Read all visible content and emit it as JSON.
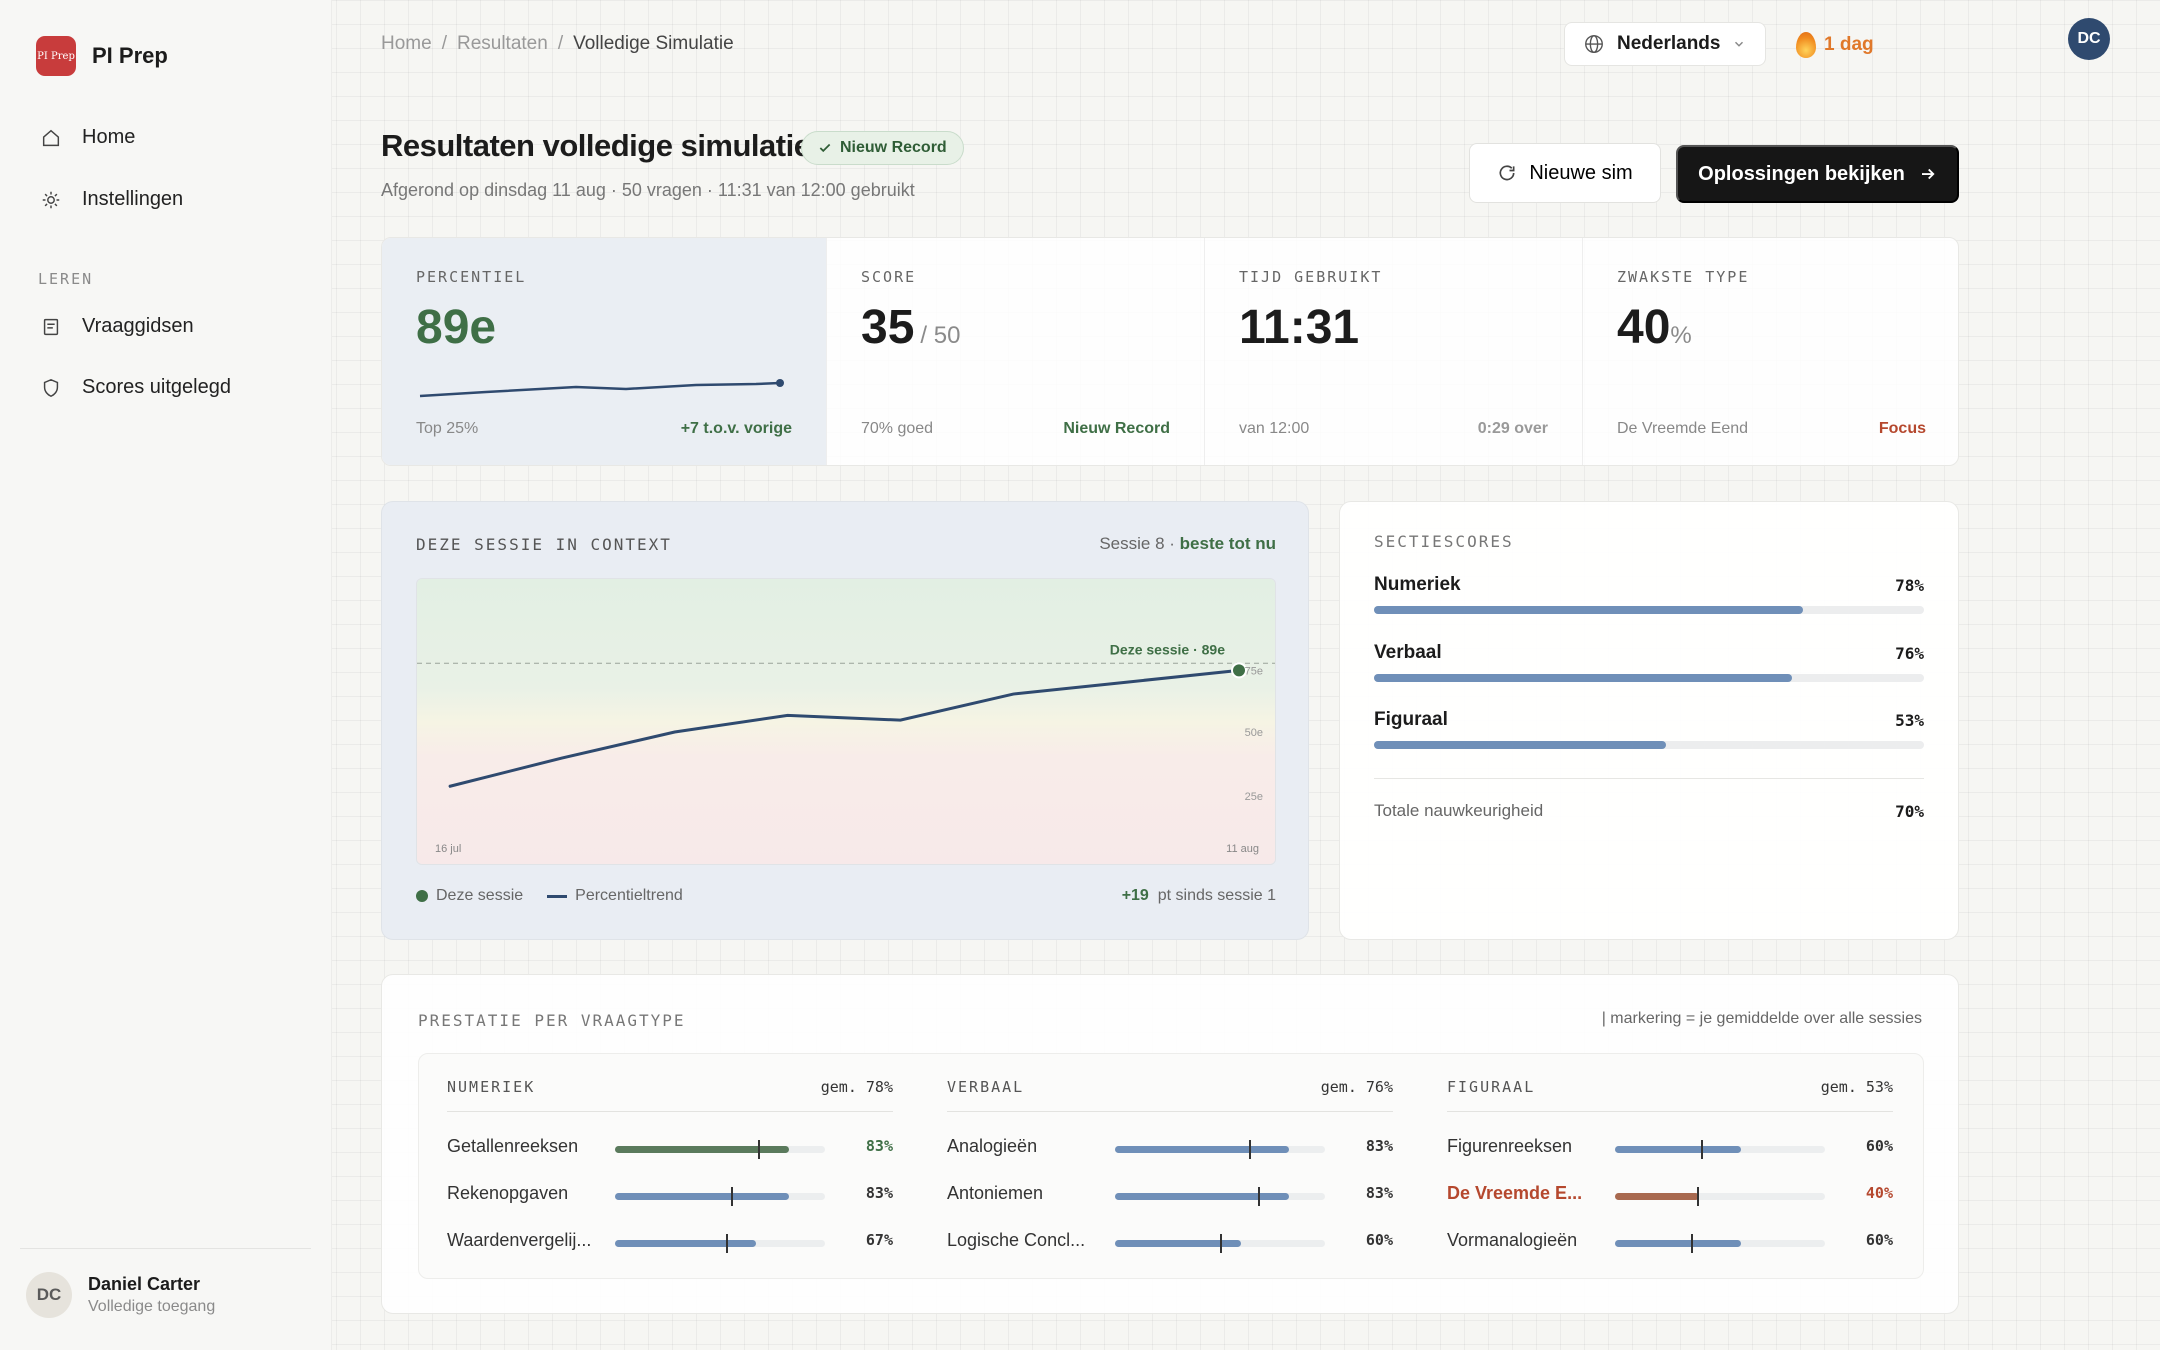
{
  "app": {
    "name": "PI Prep",
    "logo_text": "PI Prep"
  },
  "sidebar": {
    "nav": [
      {
        "label": "Home",
        "icon": "home-icon"
      },
      {
        "label": "Instellingen",
        "icon": "gear-icon"
      }
    ],
    "section_label": "LEREN",
    "learn": [
      {
        "label": "Vraaggidsen",
        "icon": "guide-icon"
      },
      {
        "label": "Scores uitgelegd",
        "icon": "shield-icon"
      }
    ],
    "user": {
      "initials": "DC",
      "name": "Daniel Carter",
      "subtitle": "Volledige toegang"
    }
  },
  "topbar": {
    "breadcrumb": [
      "Home",
      "Resultaten",
      "Volledige Simulatie"
    ],
    "language": "Nederlands",
    "streak": "1 dag",
    "avatar_initials": "DC"
  },
  "header": {
    "title": "Resultaten volledige simulatie",
    "badge": "Nieuw Record",
    "subtitle": "Afgerond op dinsdag 11 aug · 50 vragen · 11:31 van 12:00 gebruikt",
    "btn_secondary": "Nieuwe sim",
    "btn_primary": "Oplossingen bekijken"
  },
  "stats": [
    {
      "label": "PERCENTIEL",
      "value": "89e",
      "suffix": "",
      "foot_left": "Top 25%",
      "foot_right": "+7 t.o.v. vorige",
      "foot_right_color": "#3f6f46"
    },
    {
      "label": "SCORE",
      "value": "35",
      "suffix": "/ 50",
      "foot_left": "70% goed",
      "foot_right": "Nieuw Record",
      "foot_right_color": "#3f6f46"
    },
    {
      "label": "TIJD GEBRUIKT",
      "value": "11:31",
      "suffix": "",
      "foot_left": "van 12:00",
      "foot_right": "0:29 over",
      "foot_right_color": "#999999"
    },
    {
      "label": "ZWAKSTE TYPE",
      "value": "40",
      "suffix": "%",
      "foot_left": "De Vreemde Eend",
      "foot_right": "Focus",
      "foot_right_color": "#b5482e"
    }
  ],
  "context": {
    "label": "DEZE SESSIE IN CONTEXT",
    "session_text": "Sessie 8 · ",
    "session_best": "beste tot nu",
    "legend_session": "Deze sessie",
    "legend_trend": "Percentieltrend",
    "delta_value": "+19",
    "delta_text": "pt sinds sessie 1"
  },
  "chart_data": {
    "type": "line",
    "x_start_label": "16 jul",
    "x_end_label": "11 aug",
    "series": [
      {
        "name": "Percentieltrend",
        "values": [
          23,
          35,
          46,
          53,
          51,
          62,
          67,
          72
        ]
      }
    ],
    "bands": [
      "75e",
      "50e",
      "25e"
    ],
    "reference_line": 75,
    "highlight_label": "Deze sessie · 89e",
    "ylim": [
      0,
      100
    ]
  },
  "sections": {
    "label": "SECTIESCORES",
    "items": [
      {
        "name": "Numeriek",
        "pct": "78%",
        "value": 0.78
      },
      {
        "name": "Verbaal",
        "pct": "76%",
        "value": 0.76
      },
      {
        "name": "Figuraal",
        "pct": "53%",
        "value": 0.53
      }
    ],
    "total_label": "Totale nauwkeurigheid",
    "total_value": "70%"
  },
  "performance": {
    "label": "PRESTATIE PER VRAAGTYPE",
    "note": "| markering = je gemiddelde over alle sessies",
    "columns": [
      {
        "name": "NUMERIEK",
        "avg": "gem. 78%",
        "rows": [
          {
            "name": "Getallenreeksen",
            "pct": "83%",
            "value": 0.83,
            "marker": 0.68,
            "status": "good"
          },
          {
            "name": "Rekenopgaven",
            "pct": "83%",
            "value": 0.83,
            "marker": 0.55,
            "status": "normal"
          },
          {
            "name": "Waardenvergelij...",
            "pct": "67%",
            "value": 0.67,
            "marker": 0.53,
            "status": "normal"
          }
        ]
      },
      {
        "name": "VERBAAL",
        "avg": "gem. 76%",
        "rows": [
          {
            "name": "Analogieën",
            "pct": "83%",
            "value": 0.83,
            "marker": 0.64,
            "status": "normal"
          },
          {
            "name": "Antoniemen",
            "pct": "83%",
            "value": 0.83,
            "marker": 0.68,
            "status": "normal"
          },
          {
            "name": "Logische Concl...",
            "pct": "60%",
            "value": 0.6,
            "marker": 0.5,
            "status": "normal"
          }
        ]
      },
      {
        "name": "FIGURAAL",
        "avg": "gem. 53%",
        "rows": [
          {
            "name": "Figurenreeksen",
            "pct": "60%",
            "value": 0.6,
            "marker": 0.41,
            "status": "normal"
          },
          {
            "name": "De Vreemde E...",
            "pct": "40%",
            "value": 0.4,
            "marker": 0.39,
            "status": "weak"
          },
          {
            "name": "Vormanalogieën",
            "pct": "60%",
            "value": 0.6,
            "marker": 0.36,
            "status": "normal"
          }
        ]
      }
    ]
  },
  "colors": {
    "accent_green": "#3f6f46",
    "accent_blue": "#6f8fb8",
    "weak_red": "#b5482e",
    "line_navy": "#2f4a6f"
  }
}
